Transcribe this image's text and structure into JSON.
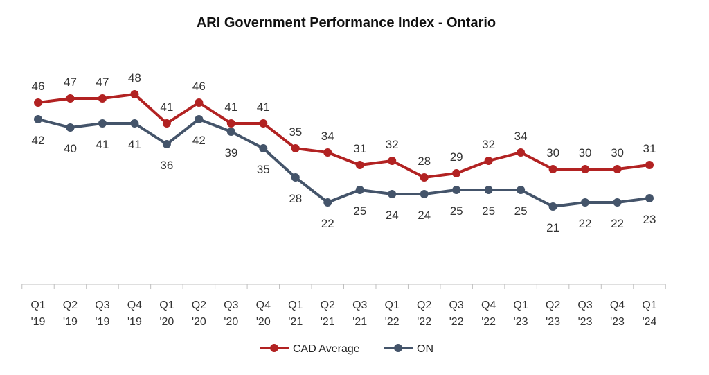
{
  "chart_data": {
    "type": "line",
    "title": "ARI Government Performance Index - Ontario",
    "categories": [
      [
        "Q1",
        "'19"
      ],
      [
        "Q2",
        "'19"
      ],
      [
        "Q3",
        "'19"
      ],
      [
        "Q4",
        "'19"
      ],
      [
        "Q1",
        "'20"
      ],
      [
        "Q2",
        "'20"
      ],
      [
        "Q3",
        "'20"
      ],
      [
        "Q4",
        "'20"
      ],
      [
        "Q1",
        "'21"
      ],
      [
        "Q2",
        "'21"
      ],
      [
        "Q3",
        "'21"
      ],
      [
        "Q1",
        "'22"
      ],
      [
        "Q2",
        "'22"
      ],
      [
        "Q3",
        "'22"
      ],
      [
        "Q4",
        "'22"
      ],
      [
        "Q1",
        "'23"
      ],
      [
        "Q2",
        "'23"
      ],
      [
        "Q3",
        "'23"
      ],
      [
        "Q4",
        "'23"
      ],
      [
        "Q1",
        "'24"
      ]
    ],
    "series": [
      {
        "name": "CAD Average",
        "color": "#B22222",
        "values": [
          46,
          47,
          47,
          48,
          41,
          46,
          41,
          41,
          35,
          34,
          31,
          32,
          28,
          29,
          32,
          34,
          30,
          30,
          30,
          31
        ]
      },
      {
        "name": "ON",
        "color": "#44546A",
        "values": [
          42,
          40,
          41,
          41,
          36,
          42,
          39,
          35,
          28,
          22,
          25,
          24,
          24,
          25,
          25,
          25,
          21,
          22,
          22,
          23
        ]
      }
    ],
    "legend_position": "bottom",
    "grid": false,
    "data_labels": true
  }
}
